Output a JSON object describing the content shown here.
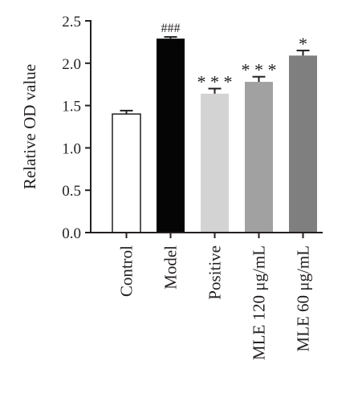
{
  "chart_data": {
    "type": "bar",
    "ylabel": "Relative OD value",
    "xlabel": "",
    "ylim": [
      0,
      2.5
    ],
    "yticks": [
      "0.0",
      "0.5",
      "1.0",
      "1.5",
      "2.0",
      "2.5"
    ],
    "categories": [
      "Control",
      "Model",
      "Positive",
      "MLE 120 μg/mL",
      "MLE 60 μg/mL"
    ],
    "values": [
      1.4,
      2.29,
      1.64,
      1.78,
      2.09
    ],
    "errors": [
      0.04,
      0.02,
      0.06,
      0.06,
      0.06
    ],
    "annotations": [
      "",
      "###",
      "* * *",
      "* * *",
      "*"
    ],
    "colors": [
      "#ffffff",
      "#050505",
      "#d3d3d3",
      "#a1a1a1",
      "#7f7f7f"
    ],
    "grid": false,
    "legend": "none"
  }
}
